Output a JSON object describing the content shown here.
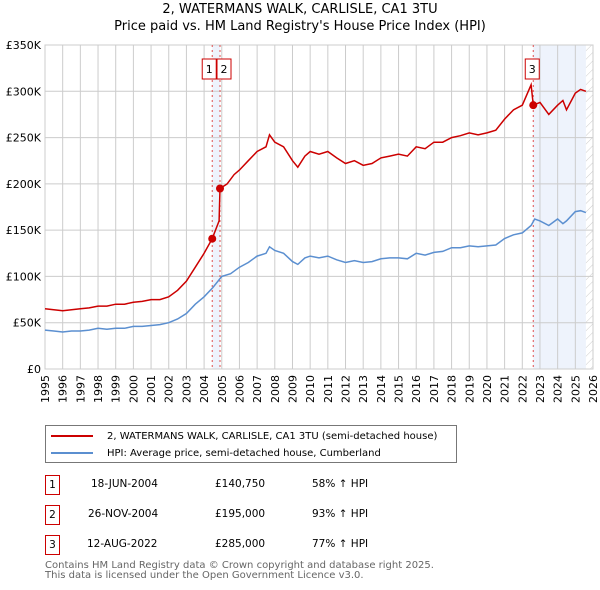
{
  "chart_data": {
    "type": "line",
    "title": "2, WATERMANS WALK, CARLISLE, CA1 3TU",
    "subtitle": "Price paid vs. HM Land Registry's House Price Index (HPI)",
    "xlim": [
      1995,
      2026
    ],
    "ylim": [
      0,
      350000
    ],
    "yticks": [
      "£0",
      "£50K",
      "£100K",
      "£150K",
      "£200K",
      "£250K",
      "£300K",
      "£350K"
    ],
    "xticks": [
      "1995",
      "1996",
      "1997",
      "1998",
      "1999",
      "2000",
      "2001",
      "2002",
      "2003",
      "2004",
      "2005",
      "2006",
      "2007",
      "2008",
      "2009",
      "2010",
      "2011",
      "2012",
      "2013",
      "2014",
      "2015",
      "2016",
      "2017",
      "2018",
      "2019",
      "2020",
      "2021",
      "2022",
      "2023",
      "2024",
      "2025",
      "2026"
    ],
    "grid": true,
    "series": [
      {
        "name": "2, WATERMANS WALK, CARLISLE, CA1 3TU (semi-detached house)",
        "color": "#cc0000",
        "x": [
          1995,
          1995.5,
          1996,
          1996.5,
          1997,
          1997.5,
          1998,
          1998.5,
          1999,
          1999.5,
          2000,
          2000.5,
          2001,
          2001.5,
          2002,
          2002.5,
          2003,
          2003.5,
          2004,
          2004.46,
          2004.85,
          2004.9,
          2005.3,
          2005.7,
          2006,
          2006.5,
          2007,
          2007.5,
          2007.7,
          2008,
          2008.5,
          2009,
          2009.3,
          2009.7,
          2010,
          2010.5,
          2011,
          2011.5,
          2012,
          2012.5,
          2013,
          2013.5,
          2014,
          2014.5,
          2015,
          2015.5,
          2016,
          2016.5,
          2017,
          2017.5,
          2018,
          2018.5,
          2019,
          2019.5,
          2020,
          2020.5,
          2021,
          2021.5,
          2022,
          2022.5,
          2022.62,
          2023,
          2023.5,
          2024,
          2024.3,
          2024.5,
          2025,
          2025.3,
          2025.6
        ],
        "y": [
          65000,
          64000,
          63000,
          64000,
          65000,
          66000,
          68000,
          68000,
          70000,
          70000,
          72000,
          73000,
          75000,
          75000,
          78000,
          85000,
          95000,
          110000,
          125000,
          140750,
          160000,
          195000,
          200000,
          210000,
          215000,
          225000,
          235000,
          240000,
          253000,
          245000,
          240000,
          225000,
          218000,
          230000,
          235000,
          232000,
          235000,
          228000,
          222000,
          225000,
          220000,
          222000,
          228000,
          230000,
          232000,
          230000,
          240000,
          238000,
          245000,
          245000,
          250000,
          252000,
          255000,
          253000,
          255000,
          258000,
          270000,
          280000,
          285000,
          307000,
          285000,
          288000,
          275000,
          285000,
          290000,
          280000,
          298000,
          302000,
          300000
        ]
      },
      {
        "name": "HPI: Average price, semi-detached house, Cumberland",
        "color": "#5b8fd0",
        "x": [
          1995,
          1995.5,
          1996,
          1996.5,
          1997,
          1997.5,
          1998,
          1998.5,
          1999,
          1999.5,
          2000,
          2000.5,
          2001,
          2001.5,
          2002,
          2002.5,
          2003,
          2003.5,
          2004,
          2004.5,
          2005,
          2005.5,
          2006,
          2006.5,
          2007,
          2007.5,
          2007.7,
          2008,
          2008.5,
          2009,
          2009.3,
          2009.7,
          2010,
          2010.5,
          2011,
          2011.5,
          2012,
          2012.5,
          2013,
          2013.5,
          2014,
          2014.5,
          2015,
          2015.5,
          2016,
          2016.5,
          2017,
          2017.5,
          2018,
          2018.5,
          2019,
          2019.5,
          2020,
          2020.5,
          2021,
          2021.5,
          2022,
          2022.5,
          2022.7,
          2023,
          2023.5,
          2024,
          2024.3,
          2024.5,
          2025,
          2025.3,
          2025.6
        ],
        "y": [
          42000,
          41000,
          40000,
          41000,
          41000,
          42000,
          44000,
          43000,
          44000,
          44000,
          46000,
          46000,
          47000,
          48000,
          50000,
          54000,
          60000,
          70000,
          78000,
          88000,
          100000,
          103000,
          110000,
          115000,
          122000,
          125000,
          132000,
          128000,
          125000,
          116000,
          113000,
          120000,
          122000,
          120000,
          122000,
          118000,
          115000,
          117000,
          115000,
          116000,
          119000,
          120000,
          120000,
          119000,
          125000,
          123000,
          126000,
          127000,
          131000,
          131000,
          133000,
          132000,
          133000,
          134000,
          141000,
          145000,
          147000,
          155000,
          162000,
          160000,
          155000,
          162000,
          157000,
          160000,
          170000,
          171000,
          169000
        ]
      }
    ],
    "markers": [
      {
        "label": "1",
        "x": 2004.46,
        "y": 140750
      },
      {
        "label": "2",
        "x": 2004.9,
        "y": 195000
      },
      {
        "label": "3",
        "x": 2022.62,
        "y": 285000
      }
    ],
    "shaded_from": 2022.62,
    "forecast_from": 2025.6
  },
  "legend": {
    "red": "2, WATERMANS WALK, CARLISLE, CA1 3TU (semi-detached house)",
    "blue": "HPI: Average price, semi-detached house, Cumberland"
  },
  "transactions": [
    {
      "num": "1",
      "date": "18-JUN-2004",
      "price": "£140,750",
      "hpi": "58% ↑ HPI"
    },
    {
      "num": "2",
      "date": "26-NOV-2004",
      "price": "£195,000",
      "hpi": "93% ↑ HPI"
    },
    {
      "num": "3",
      "date": "12-AUG-2022",
      "price": "£285,000",
      "hpi": "77% ↑ HPI"
    }
  ],
  "footer": {
    "line1": "Contains HM Land Registry data © Crown copyright and database right 2025.",
    "line2": "This data is licensed under the Open Government Licence v3.0."
  }
}
